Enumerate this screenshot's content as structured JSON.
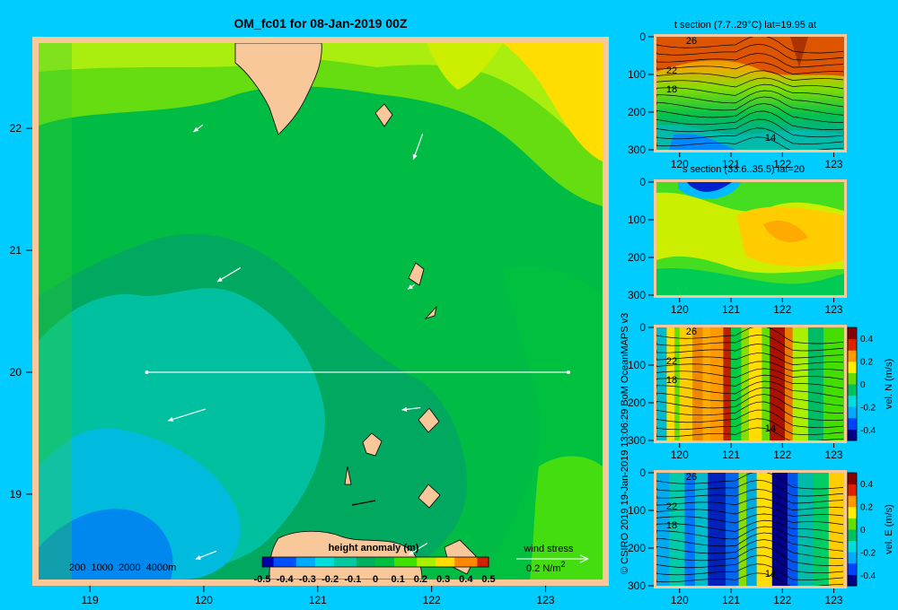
{
  "main_map": {
    "title": "OM_fc01 for 08-Jan-2019 00Z",
    "x_ticks": [
      119,
      120,
      121,
      122,
      123
    ],
    "y_ticks": [
      19,
      20,
      21,
      22
    ],
    "xlim": [
      118.55,
      123.5
    ],
    "ylim": [
      18.3,
      22.7
    ],
    "section_line": {
      "lon_start": 119.5,
      "lon_end": 123.2,
      "lat": 20
    },
    "depth_legend": "200  1000  2000  4000m",
    "colorbar": {
      "label": "height anomaly (m)",
      "tick_labels": [
        "-0.5",
        "-0.4",
        "-0.3",
        "-0.2",
        "-0.1",
        "0",
        "0.1",
        "0.2",
        "0.3",
        "0.4",
        "0.5"
      ]
    },
    "wind_legend": {
      "label": "wind stress",
      "value": "0.2 N/m",
      "exponent": "2"
    },
    "wind_arrows": [
      {
        "lon": 119.95,
        "lat": 22.0,
        "u": 0.4,
        "v": 0.3
      },
      {
        "lon": 121.88,
        "lat": 21.85,
        "u": 0.4,
        "v": 1.1
      },
      {
        "lon": 120.22,
        "lat": 20.8,
        "u": 1.0,
        "v": 0.6
      },
      {
        "lon": 121.82,
        "lat": 20.7,
        "u": 0.3,
        "v": 0.2
      },
      {
        "lon": 119.85,
        "lat": 19.65,
        "u": 1.6,
        "v": 0.5
      },
      {
        "lon": 121.82,
        "lat": 19.7,
        "u": 0.8,
        "v": 0.1
      },
      {
        "lon": 120.02,
        "lat": 18.5,
        "u": 0.9,
        "v": 0.35
      },
      {
        "lon": 121.88,
        "lat": 18.55,
        "u": 0.8,
        "v": 0.5
      }
    ]
  },
  "chart_data": [
    {
      "type": "heatmap",
      "name": "height-anomaly-map",
      "value_range": [
        -0.5,
        0.5
      ],
      "colors": [
        "#0000aa",
        "#0050ff",
        "#00aaff",
        "#00dddd",
        "#00c8a0",
        "#00b060",
        "#00c040",
        "#40e000",
        "#aaee00",
        "#ffdd00",
        "#ff8800",
        "#cc2200"
      ]
    },
    {
      "type": "heatmap",
      "title": "t section (7.7..29°C) lat=19.95 at",
      "x_ticks": [
        120,
        121,
        122,
        123
      ],
      "y_ticks": [
        0,
        100,
        200,
        300
      ],
      "contour_labels": [
        "26",
        "22",
        "18",
        "14"
      ]
    },
    {
      "type": "heatmap",
      "title": "s section (33.6..35.5) lat=20",
      "x_ticks": [
        120,
        121,
        122,
        123
      ],
      "y_ticks": [
        0,
        100,
        200,
        300
      ]
    },
    {
      "type": "heatmap",
      "ylabel": "vel. N (m/s)",
      "x_ticks": [
        120,
        121,
        122,
        123
      ],
      "y_ticks": [
        0,
        100,
        200,
        300
      ],
      "contour_labels": [
        "26",
        "22",
        "18",
        "14"
      ],
      "colorbar_ticks": [
        "0.4",
        "0.2",
        "0",
        "-0.2",
        "-0.4"
      ]
    },
    {
      "type": "heatmap",
      "ylabel": "vel. E (m/s)",
      "x_ticks": [
        120,
        121,
        122,
        123
      ],
      "y_ticks": [
        0,
        100,
        200,
        300
      ],
      "contour_labels": [
        "26",
        "22",
        "18",
        "14"
      ],
      "colorbar_ticks": [
        "0.4",
        "0.2",
        "0",
        "-0.2",
        "-0.4"
      ]
    }
  ],
  "credit": "© CSIRO 2019   19-Jan-2019 13:06:29 BoM OceanMAPS v3"
}
